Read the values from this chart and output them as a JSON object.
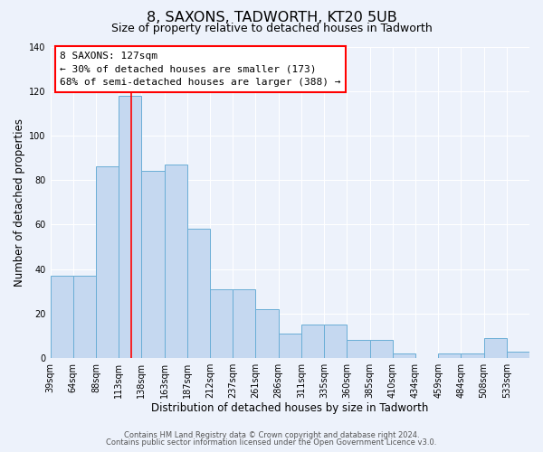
{
  "title": "8, SAXONS, TADWORTH, KT20 5UB",
  "subtitle": "Size of property relative to detached houses in Tadworth",
  "xlabel": "Distribution of detached houses by size in Tadworth",
  "ylabel": "Number of detached properties",
  "bar_values": [
    37,
    37,
    86,
    118,
    84,
    87,
    58,
    31,
    31,
    22,
    11,
    15,
    15,
    8,
    8,
    2,
    0,
    2,
    2,
    9,
    3
  ],
  "bin_labels": [
    "39sqm",
    "64sqm",
    "88sqm",
    "113sqm",
    "138sqm",
    "163sqm",
    "187sqm",
    "212sqm",
    "237sqm",
    "261sqm",
    "286sqm",
    "311sqm",
    "335sqm",
    "360sqm",
    "385sqm",
    "410sqm",
    "434sqm",
    "459sqm",
    "484sqm",
    "508sqm",
    "533sqm"
  ],
  "bar_color": "#c5d8f0",
  "bar_edge_color": "#6aaed6",
  "ylim": [
    0,
    140
  ],
  "yticks": [
    0,
    20,
    40,
    60,
    80,
    100,
    120,
    140
  ],
  "annotation_title": "8 SAXONS: 127sqm",
  "annotation_line1": "← 30% of detached houses are smaller (173)",
  "annotation_line2": "68% of semi-detached houses are larger (388) →",
  "footer1": "Contains HM Land Registry data © Crown copyright and database right 2024.",
  "footer2": "Contains public sector information licensed under the Open Government Licence v3.0.",
  "background_color": "#edf2fb",
  "grid_color": "#ffffff",
  "title_fontsize": 11.5,
  "subtitle_fontsize": 9,
  "axis_label_fontsize": 8.5,
  "tick_fontsize": 7,
  "footer_fontsize": 6,
  "annotation_fontsize": 8
}
